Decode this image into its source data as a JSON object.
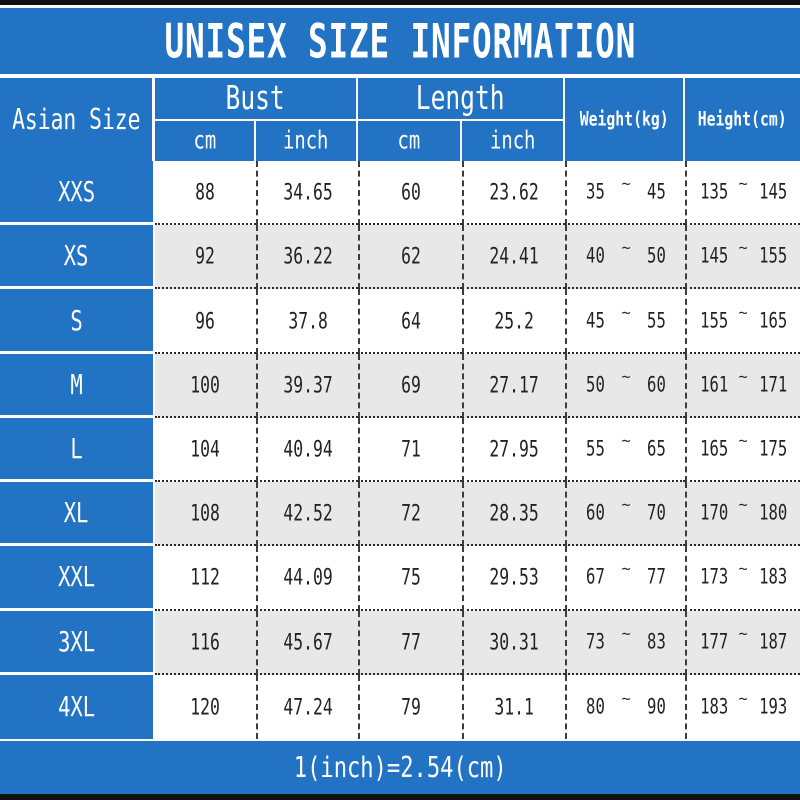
{
  "title": "UNISEX SIZE INFORMATION",
  "footer": {
    "note": "1(inch)=2.54(cm)"
  },
  "table": {
    "corner_header": "Asian Size",
    "tilde": "~",
    "groups": [
      {
        "label": "Bust",
        "sub": [
          "cm",
          "inch"
        ]
      },
      {
        "label": "Length",
        "sub": [
          "cm",
          "inch"
        ]
      }
    ],
    "single_headers": [
      "Weight(kg)",
      "Height(cm)"
    ],
    "rows": [
      {
        "size": "XXS",
        "bust_cm": "88",
        "bust_inch": "34.65",
        "length_cm": "60",
        "length_inch": "23.62",
        "weight_min": "35",
        "weight_max": "45",
        "height_min": "135",
        "height_max": "145"
      },
      {
        "size": "XS",
        "bust_cm": "92",
        "bust_inch": "36.22",
        "length_cm": "62",
        "length_inch": "24.41",
        "weight_min": "40",
        "weight_max": "50",
        "height_min": "145",
        "height_max": "155"
      },
      {
        "size": "S",
        "bust_cm": "96",
        "bust_inch": "37.8",
        "length_cm": "64",
        "length_inch": "25.2",
        "weight_min": "45",
        "weight_max": "55",
        "height_min": "155",
        "height_max": "165"
      },
      {
        "size": "M",
        "bust_cm": "100",
        "bust_inch": "39.37",
        "length_cm": "69",
        "length_inch": "27.17",
        "weight_min": "50",
        "weight_max": "60",
        "height_min": "161",
        "height_max": "171"
      },
      {
        "size": "L",
        "bust_cm": "104",
        "bust_inch": "40.94",
        "length_cm": "71",
        "length_inch": "27.95",
        "weight_min": "55",
        "weight_max": "65",
        "height_min": "165",
        "height_max": "175"
      },
      {
        "size": "XL",
        "bust_cm": "108",
        "bust_inch": "42.52",
        "length_cm": "72",
        "length_inch": "28.35",
        "weight_min": "60",
        "weight_max": "70",
        "height_min": "170",
        "height_max": "180"
      },
      {
        "size": "XXL",
        "bust_cm": "112",
        "bust_inch": "44.09",
        "length_cm": "75",
        "length_inch": "29.53",
        "weight_min": "67",
        "weight_max": "77",
        "height_min": "173",
        "height_max": "183"
      },
      {
        "size": "3XL",
        "bust_cm": "116",
        "bust_inch": "45.67",
        "length_cm": "77",
        "length_inch": "30.31",
        "weight_min": "73",
        "weight_max": "83",
        "height_min": "177",
        "height_max": "187"
      },
      {
        "size": "4XL",
        "bust_cm": "120",
        "bust_inch": "47.24",
        "length_cm": "79",
        "length_inch": "31.1",
        "weight_min": "80",
        "weight_max": "90",
        "height_min": "183",
        "height_max": "193"
      }
    ]
  },
  "chart_data": {
    "type": "table",
    "title": "UNISEX SIZE INFORMATION",
    "columns": [
      "Asian Size",
      "Bust (cm)",
      "Bust (inch)",
      "Length (cm)",
      "Length (inch)",
      "Weight (kg)",
      "Height (cm)"
    ],
    "rows": [
      [
        "XXS",
        88,
        34.65,
        60,
        23.62,
        "35~45",
        "135~145"
      ],
      [
        "XS",
        92,
        36.22,
        62,
        24.41,
        "40~50",
        "145~155"
      ],
      [
        "S",
        96,
        37.8,
        64,
        25.2,
        "45~55",
        "155~165"
      ],
      [
        "M",
        100,
        39.37,
        69,
        27.17,
        "50~60",
        "161~171"
      ],
      [
        "L",
        104,
        40.94,
        71,
        27.95,
        "55~65",
        "165~175"
      ],
      [
        "XL",
        108,
        42.52,
        72,
        28.35,
        "60~70",
        "170~180"
      ],
      [
        "XXL",
        112,
        44.09,
        75,
        29.53,
        "67~77",
        "173~183"
      ],
      [
        "3XL",
        116,
        45.67,
        77,
        30.31,
        "73~83",
        "177~187"
      ],
      [
        "4XL",
        120,
        47.24,
        79,
        31.1,
        "80~90",
        "183~193"
      ]
    ],
    "note": "1(inch)=2.54(cm)"
  },
  "colors": {
    "blue": "#2373c4",
    "row-alt": "#e8e8e8",
    "bar": "#111111",
    "ink": "#222222"
  }
}
